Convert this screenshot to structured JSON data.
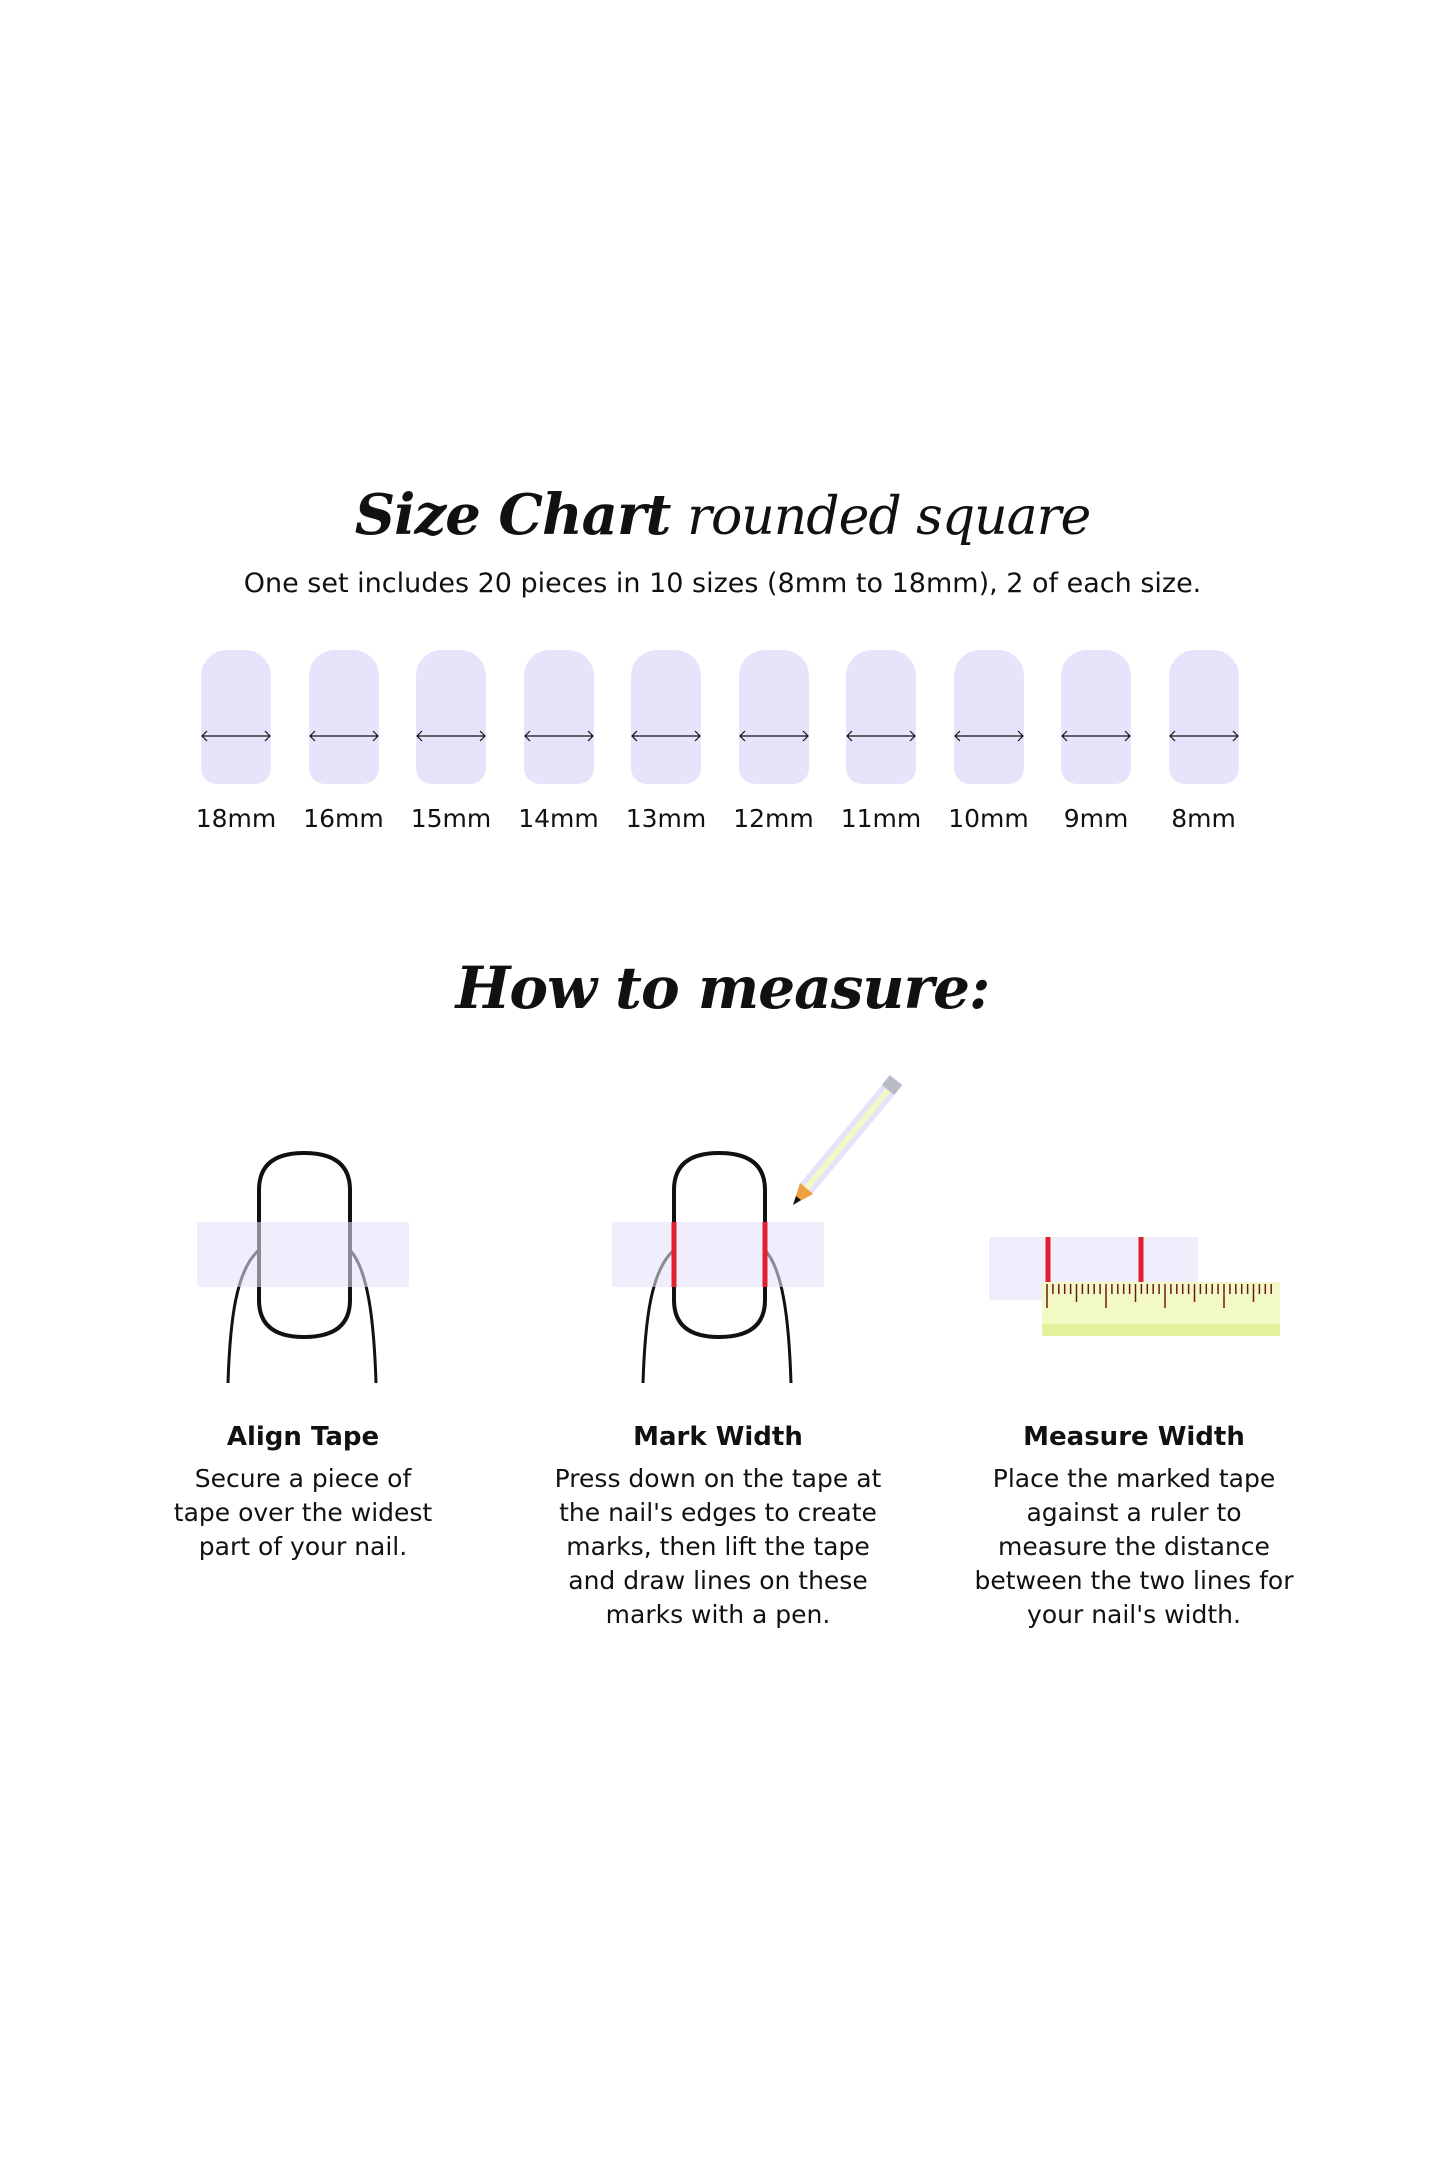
{
  "header": {
    "title_bold": "Size Chart",
    "title_light": "rounded square",
    "subtitle": "One set includes 20 pieces in 10 sizes (8mm to 18mm), 2 of each size."
  },
  "sizes": [
    "18mm",
    "16mm",
    "15mm",
    "14mm",
    "13mm",
    "12mm",
    "11mm",
    "10mm",
    "9mm",
    "8mm"
  ],
  "colors": {
    "nail": "#e8e2fb",
    "tape": "#f0edfc",
    "mark": "#e0202a",
    "ruler": "#f3f9c4"
  },
  "how": {
    "title": "How to measure:",
    "steps": [
      {
        "title": "Align Tape",
        "text": "Secure a piece of tape over the widest part of your nail."
      },
      {
        "title": "Mark Width",
        "text": "Press down on the tape at the nail's edges to create marks, then lift the tape and draw lines on these marks with a pen."
      },
      {
        "title": "Measure Width",
        "text": "Place the marked tape against a ruler to measure the distance between the two lines for your nail's width."
      }
    ]
  }
}
